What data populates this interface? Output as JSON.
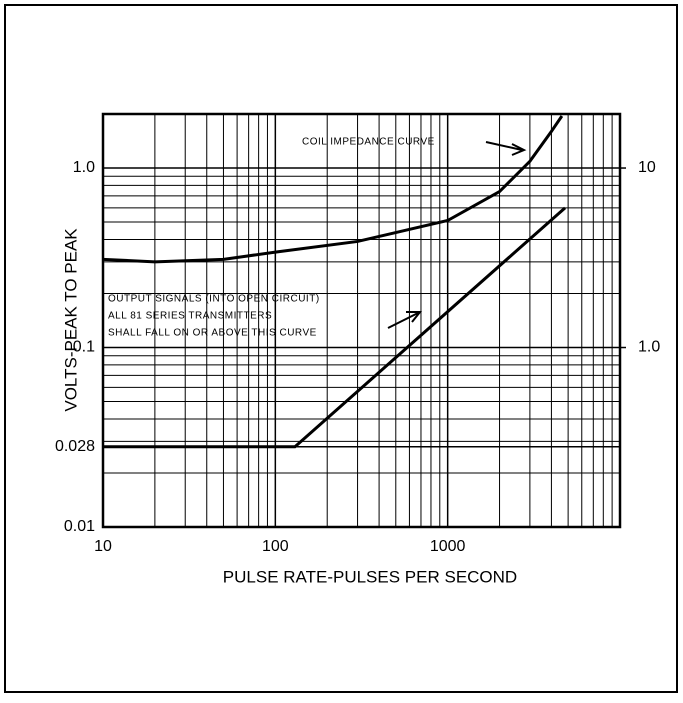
{
  "chart_data": {
    "type": "line",
    "x_label": "PULSE RATE-PULSES PER SECOND",
    "y_label": "VOLTS-PEAK TO PEAK",
    "xscale": "log",
    "yscale": "log",
    "grid": true,
    "color": "#000000",
    "xlim": [
      10,
      10000
    ],
    "xticks": [
      10,
      100,
      1000
    ],
    "ylim": [
      0.01,
      2
    ],
    "yticks": [
      0.01,
      0.028,
      0.1,
      {
        "value": 1,
        "label": "1.0"
      }
    ],
    "y2lim": [
      0.1,
      20
    ],
    "y2ticks": [
      {
        "value": 1,
        "label": "1.0"
      },
      10
    ],
    "series": [
      {
        "x": [
          10,
          130,
          4800
        ],
        "values": [
          0.028,
          0.028,
          0.6
        ]
      },
      {
        "axis": "y2",
        "x": [
          10,
          20,
          50,
          100,
          300,
          1000,
          2000,
          3000,
          4000,
          4600
        ],
        "values": [
          3.1,
          3.0,
          3.1,
          3.4,
          3.9,
          5.1,
          7.4,
          10.9,
          16,
          19.5
        ]
      }
    ],
    "annotations": [
      "COIL IMPEDANCE CURVE",
      "OUTPUT SIGNALS (INTO OPEN CIRCUIT)",
      "ALL 81 SERIES TRANSMITTERS",
      "SHALL FALL ON OR ABOVE THIS CURVE"
    ]
  }
}
